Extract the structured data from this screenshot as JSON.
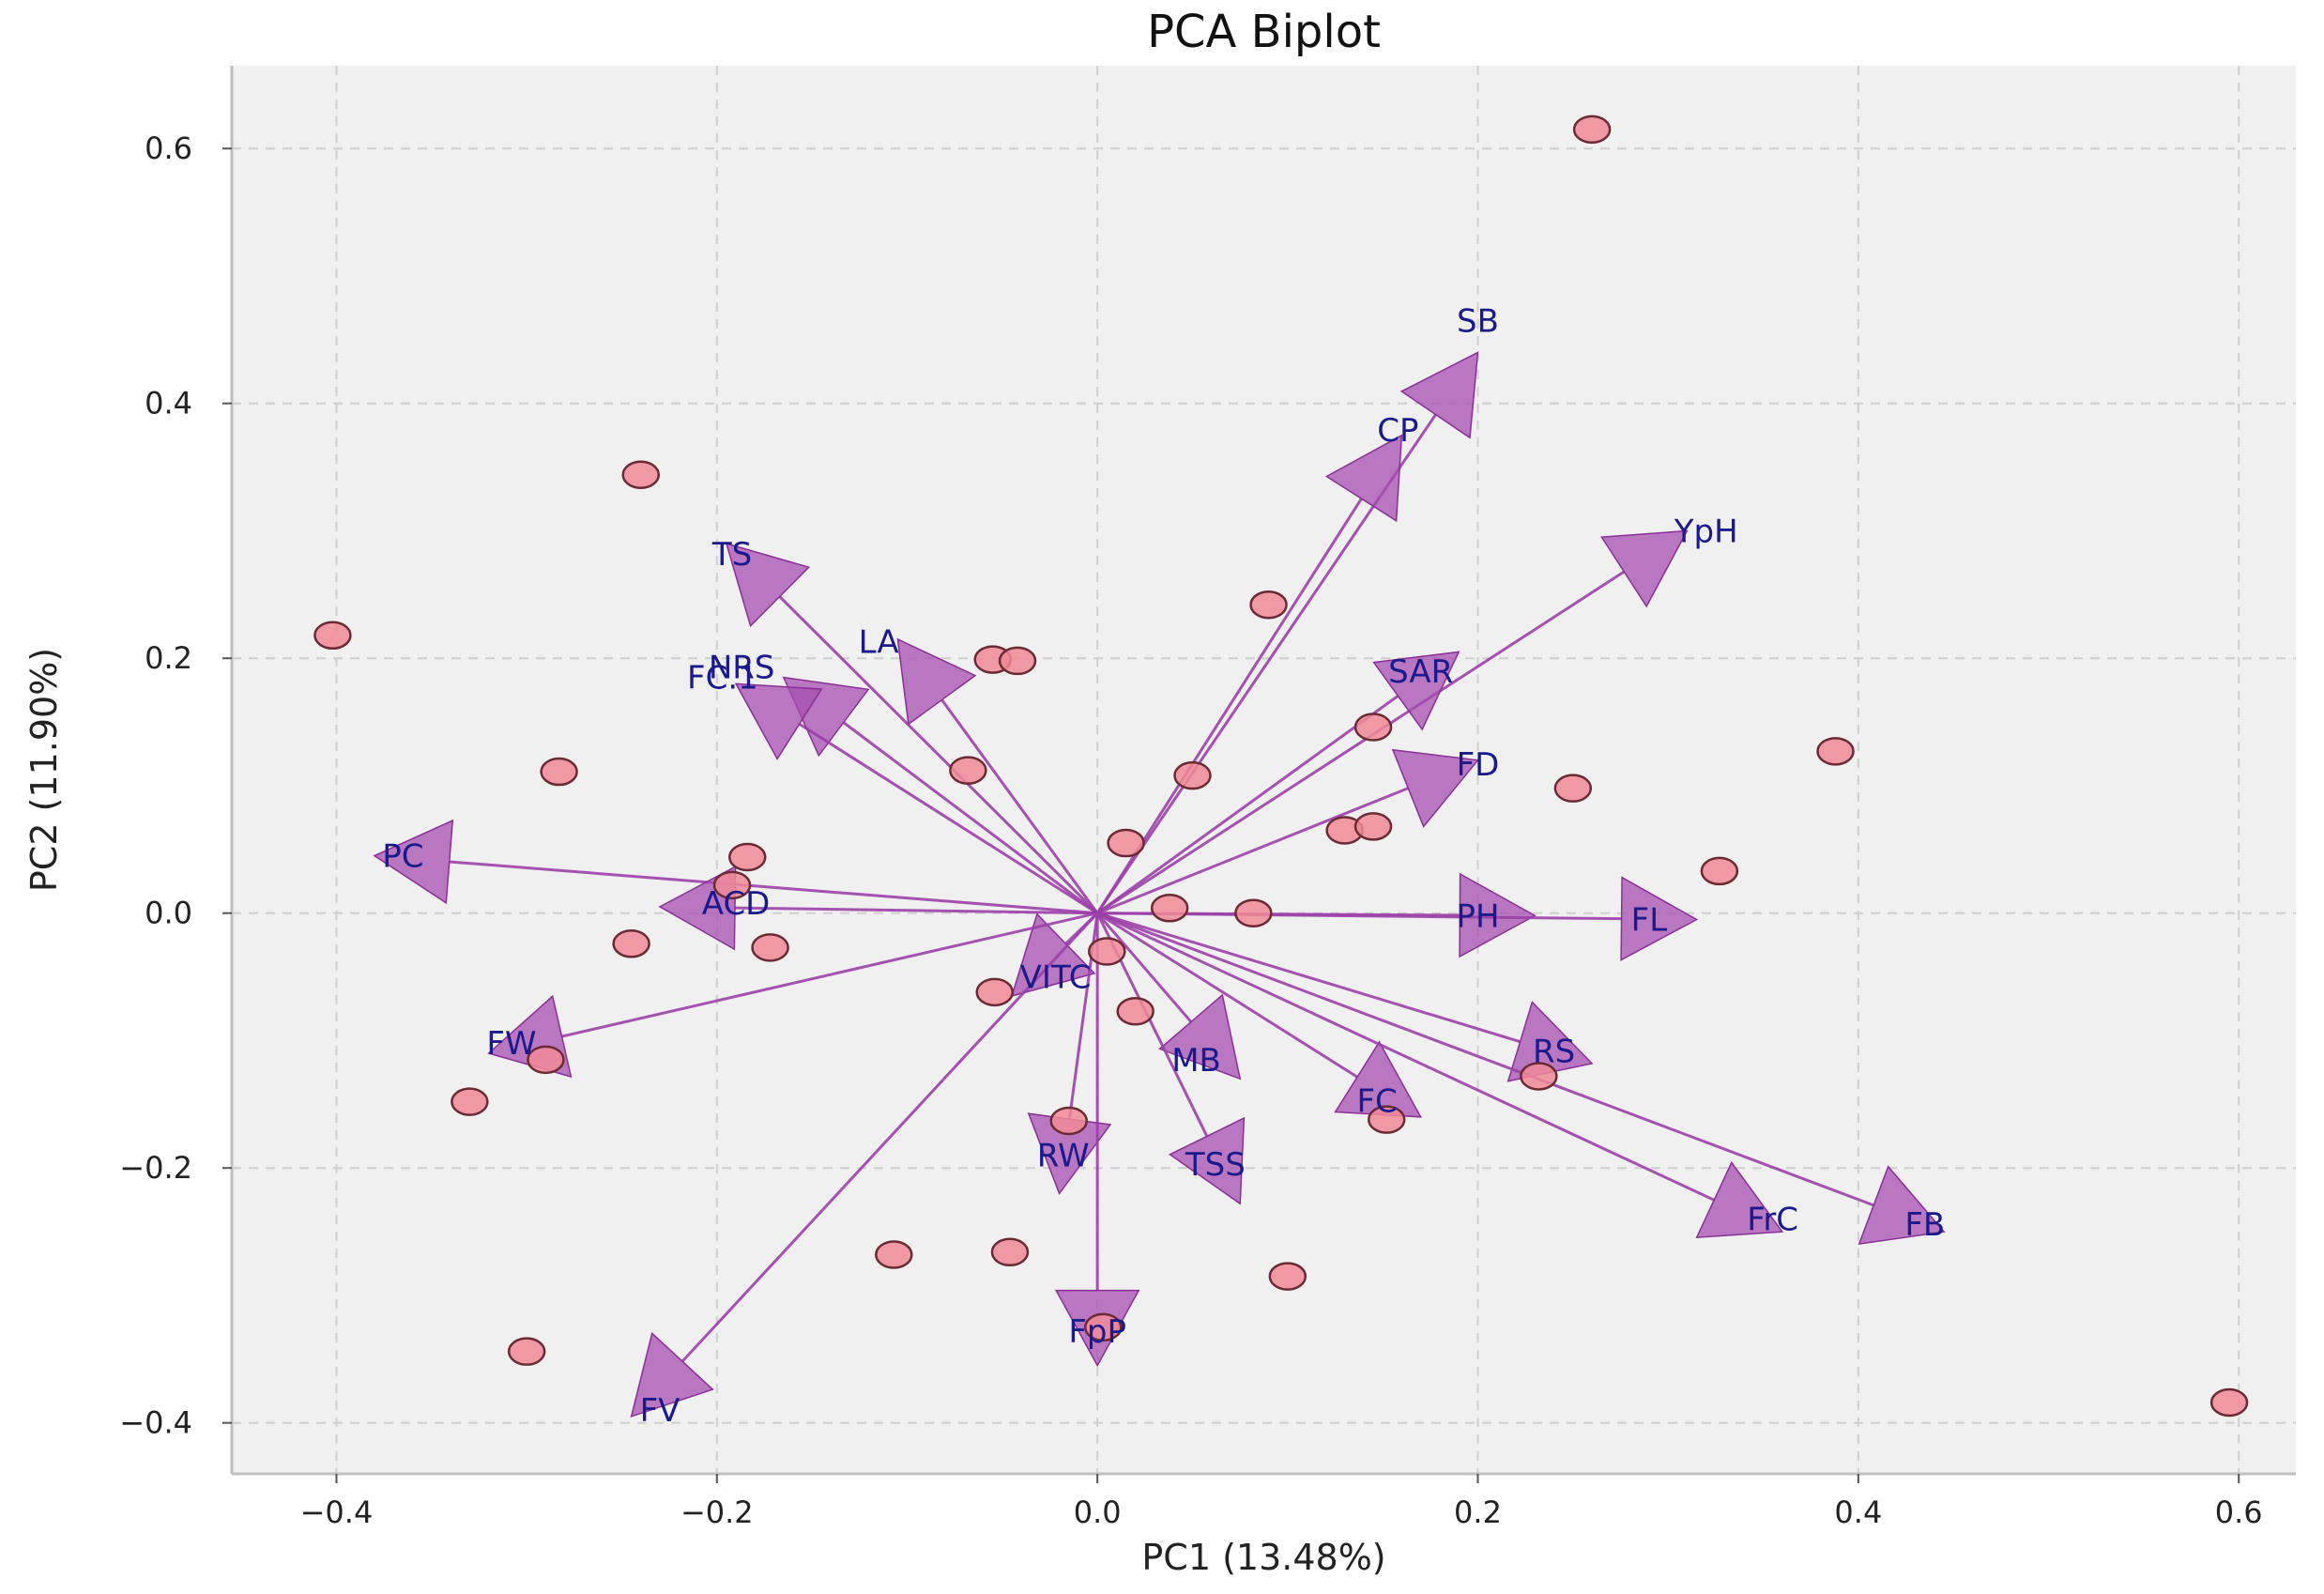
{
  "chart_data": {
    "type": "scatter",
    "subtype": "pca-biplot",
    "title": "PCA Biplot",
    "xlabel": "PC1 (13.48%)",
    "ylabel": "PC2 (11.90%)",
    "xlim": [
      -0.455,
      0.63
    ],
    "ylim": [
      -0.44,
      0.665
    ],
    "xticks": [
      -0.4,
      -0.2,
      0.0,
      0.2,
      0.4,
      0.6
    ],
    "yticks": [
      -0.4,
      -0.2,
      0.0,
      0.2,
      0.4,
      0.6
    ],
    "xtick_labels": [
      "−0.4",
      "−0.2",
      "0.0",
      "0.2",
      "0.4",
      "0.6"
    ],
    "ytick_labels": [
      "−0.4",
      "−0.2",
      "0.0",
      "0.2",
      "0.4",
      "0.6"
    ],
    "grid": true,
    "colors": {
      "points": "#f08a96",
      "arrows": "#9b3fa8",
      "labels": "#1a1a8c",
      "background": "#f0f0f0"
    },
    "points": [
      [
        0.26,
        0.615
      ],
      [
        -0.24,
        0.344
      ],
      [
        -0.402,
        0.218
      ],
      [
        0.09,
        0.242
      ],
      [
        -0.055,
        0.199
      ],
      [
        -0.042,
        0.198
      ],
      [
        -0.283,
        0.111
      ],
      [
        -0.068,
        0.112
      ],
      [
        0.05,
        0.108
      ],
      [
        0.145,
        0.146
      ],
      [
        0.25,
        0.098
      ],
      [
        0.388,
        0.127
      ],
      [
        0.015,
        0.055
      ],
      [
        0.13,
        0.065
      ],
      [
        0.145,
        0.068
      ],
      [
        0.327,
        0.033
      ],
      [
        -0.184,
        0.044
      ],
      [
        -0.192,
        0.022
      ],
      [
        0.038,
        0.004
      ],
      [
        0.082,
        0.0
      ],
      [
        -0.245,
        -0.024
      ],
      [
        -0.172,
        -0.027
      ],
      [
        0.005,
        -0.03
      ],
      [
        -0.054,
        -0.062
      ],
      [
        0.02,
        -0.077
      ],
      [
        -0.29,
        -0.115
      ],
      [
        -0.33,
        -0.148
      ],
      [
        0.232,
        -0.128
      ],
      [
        0.152,
        -0.162
      ],
      [
        -0.015,
        -0.163
      ],
      [
        -0.107,
        -0.268
      ],
      [
        -0.046,
        -0.266
      ],
      [
        0.1,
        -0.285
      ],
      [
        0.003,
        -0.325
      ],
      [
        -0.3,
        -0.344
      ],
      [
        0.595,
        -0.384
      ]
    ],
    "loadings": [
      {
        "name": "SB",
        "x": 0.2,
        "y": 0.44
      },
      {
        "name": "CP",
        "x": 0.16,
        "y": 0.375
      },
      {
        "name": "YpH",
        "x": 0.31,
        "y": 0.3
      },
      {
        "name": "TS",
        "x": -0.195,
        "y": 0.29
      },
      {
        "name": "LA",
        "x": -0.105,
        "y": 0.215
      },
      {
        "name": "NRS",
        "x": -0.165,
        "y": 0.185
      },
      {
        "name": "FC.1",
        "x": -0.19,
        "y": 0.18
      },
      {
        "name": "SAR",
        "x": 0.19,
        "y": 0.205
      },
      {
        "name": "FD",
        "x": 0.2,
        "y": 0.12
      },
      {
        "name": "PC",
        "x": -0.38,
        "y": 0.045
      },
      {
        "name": "ACD",
        "x": -0.23,
        "y": 0.005
      },
      {
        "name": "PH",
        "x": 0.23,
        "y": -0.002
      },
      {
        "name": "FL",
        "x": 0.315,
        "y": -0.005
      },
      {
        "name": "VITC",
        "x": -0.045,
        "y": -0.065
      },
      {
        "name": "FW",
        "x": -0.32,
        "y": -0.11
      },
      {
        "name": "RS",
        "x": 0.26,
        "y": -0.118
      },
      {
        "name": "MB",
        "x": 0.075,
        "y": -0.13
      },
      {
        "name": "FC",
        "x": 0.17,
        "y": -0.16
      },
      {
        "name": "RW",
        "x": -0.02,
        "y": -0.22
      },
      {
        "name": "TSS",
        "x": 0.075,
        "y": -0.228
      },
      {
        "name": "FrC",
        "x": 0.36,
        "y": -0.25
      },
      {
        "name": "FB",
        "x": 0.445,
        "y": -0.25
      },
      {
        "name": "FpP",
        "x": 0.0,
        "y": -0.355
      },
      {
        "name": "FV",
        "x": -0.245,
        "y": -0.395
      }
    ],
    "labels": [
      {
        "text": "SB",
        "x": 0.2,
        "y": 0.465
      },
      {
        "text": "CP",
        "x": 0.158,
        "y": 0.379
      },
      {
        "text": "YpH",
        "x": 0.32,
        "y": 0.3
      },
      {
        "text": "TS",
        "x": -0.192,
        "y": 0.282
      },
      {
        "text": "LA",
        "x": -0.115,
        "y": 0.213
      },
      {
        "text": "NRS",
        "x": -0.187,
        "y": 0.193
      },
      {
        "text": "FC.1",
        "x": -0.197,
        "y": 0.185
      },
      {
        "text": "SAR",
        "x": 0.17,
        "y": 0.19
      },
      {
        "text": "FD",
        "x": 0.2,
        "y": 0.117
      },
      {
        "text": "PC",
        "x": -0.365,
        "y": 0.045
      },
      {
        "text": "ACD",
        "x": -0.19,
        "y": 0.008
      },
      {
        "text": "PH",
        "x": 0.2,
        "y": -0.002
      },
      {
        "text": "FL",
        "x": 0.29,
        "y": -0.005
      },
      {
        "text": "VITC",
        "x": -0.022,
        "y": -0.05
      },
      {
        "text": "FW",
        "x": -0.308,
        "y": -0.102
      },
      {
        "text": "RS",
        "x": 0.24,
        "y": -0.108
      },
      {
        "text": "MB",
        "x": 0.052,
        "y": -0.115
      },
      {
        "text": "FC",
        "x": 0.147,
        "y": -0.147
      },
      {
        "text": "RW",
        "x": -0.018,
        "y": -0.19
      },
      {
        "text": "TSS",
        "x": 0.062,
        "y": -0.197
      },
      {
        "text": "FrC",
        "x": 0.355,
        "y": -0.24
      },
      {
        "text": "FB",
        "x": 0.435,
        "y": -0.244
      },
      {
        "text": "FpP",
        "x": 0.0,
        "y": -0.328
      },
      {
        "text": "FV",
        "x": -0.23,
        "y": -0.39
      }
    ]
  }
}
